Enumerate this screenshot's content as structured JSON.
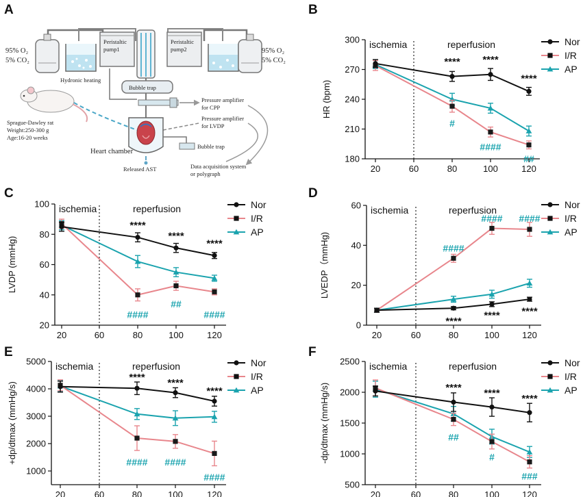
{
  "colors": {
    "nor": "#111111",
    "ir": "#e8868c",
    "ap": "#1aa3ae",
    "ir_hash": "#1aa3ae",
    "tubing": "#4aa7c7"
  },
  "legend": [
    "Nor",
    "I/R",
    "AP"
  ],
  "schematic": {
    "panel_letter": "A",
    "gas_left": [
      "95% O₂",
      "5% CO₂"
    ],
    "gas_right": [
      "95% O₂",
      "5% CO₂"
    ],
    "pump1": [
      "Peristaltic",
      "pump1"
    ],
    "pump2": [
      "Peristaltic",
      "pump2"
    ],
    "hydronic": "Hydronic heating",
    "bubble_trap_top": "Bubble trap",
    "bubble_trap_bottom": "Bubble trap",
    "pressure_cpp": [
      "Pressure amplifier",
      "for CPP"
    ],
    "pressure_lvdp": [
      "Pressure amplifier",
      "for LVDP"
    ],
    "rat_info": [
      "Sprague-Dawley rat",
      "Weight:250-300 g",
      "Age:16-20 weeks"
    ],
    "heart_chamber": "Heart chamber",
    "released": "Released AST",
    "daq": [
      "Data acquisition system",
      "or polygraph"
    ]
  },
  "chart_data": [
    {
      "panel": "B",
      "type": "line",
      "ylabel": "HR (bpm)",
      "xlabel": "",
      "categories": [
        "20",
        "60",
        "80",
        "100",
        "120"
      ],
      "x": [
        20,
        80,
        100,
        120
      ],
      "ylim": [
        180,
        300
      ],
      "yticks": [
        180,
        210,
        240,
        270,
        300
      ],
      "ischemia_label": "ischemia",
      "reperfusion_label": "reperfusion",
      "divider_x": 60,
      "series": [
        {
          "name": "Nor",
          "values": [
            276,
            263,
            265,
            248
          ],
          "errors": [
            4,
            5,
            6,
            4
          ]
        },
        {
          "name": "I/R",
          "values": [
            274,
            233,
            207,
            194
          ],
          "errors": [
            5,
            6,
            5,
            4
          ]
        },
        {
          "name": "AP",
          "values": [
            275,
            240,
            231,
            208
          ],
          "errors": [
            4,
            6,
            5,
            5
          ]
        }
      ],
      "stars": [
        {
          "x": 80,
          "y": 278,
          "text": "****"
        },
        {
          "x": 100,
          "y": 280,
          "text": "****"
        },
        {
          "x": 120,
          "y": 261,
          "text": "****"
        }
      ],
      "hashes": [
        {
          "x": 80,
          "y": 216,
          "text": "#"
        },
        {
          "x": 100,
          "y": 192,
          "text": "####"
        },
        {
          "x": 120,
          "y": 180,
          "text": "##"
        }
      ]
    },
    {
      "panel": "C",
      "type": "line",
      "ylabel": "LVDP (mmHg)",
      "xlabel": "",
      "categories": [
        "20",
        "60",
        "80",
        "100",
        "120"
      ],
      "x": [
        20,
        80,
        100,
        120
      ],
      "ylim": [
        20,
        100
      ],
      "yticks": [
        20,
        40,
        60,
        80,
        100
      ],
      "ischemia_label": "ischemia",
      "reperfusion_label": "reperfusion",
      "divider_x": 60,
      "series": [
        {
          "name": "Nor",
          "values": [
            85,
            78,
            71,
            66
          ],
          "errors": [
            3,
            3,
            3,
            2
          ]
        },
        {
          "name": "I/R",
          "values": [
            87,
            40,
            46,
            42
          ],
          "errors": [
            3,
            4,
            3,
            2
          ]
        },
        {
          "name": "AP",
          "values": [
            86,
            62,
            55,
            51
          ],
          "errors": [
            3,
            4,
            3,
            2
          ]
        }
      ],
      "stars": [
        {
          "x": 80,
          "y": 86,
          "text": "****"
        },
        {
          "x": 100,
          "y": 79,
          "text": "****"
        },
        {
          "x": 120,
          "y": 74,
          "text": "****"
        }
      ],
      "hashes": [
        {
          "x": 80,
          "y": 27,
          "text": "####"
        },
        {
          "x": 100,
          "y": 34,
          "text": "##"
        },
        {
          "x": 120,
          "y": 27,
          "text": "####"
        }
      ]
    },
    {
      "panel": "D",
      "type": "line",
      "ylabel": "LVEDP（mmHg)",
      "xlabel": "",
      "categories": [
        "20",
        "60",
        "80",
        "100",
        "120"
      ],
      "x": [
        20,
        80,
        100,
        120
      ],
      "ylim": [
        0,
        60
      ],
      "yticks": [
        0,
        20,
        40,
        60
      ],
      "ischemia_label": "ischemia",
      "reperfusion_label": "reperfusion",
      "divider_x": 60,
      "series": [
        {
          "name": "Nor",
          "values": [
            7.5,
            8.5,
            10.5,
            13
          ],
          "errors": [
            1,
            0.8,
            1.2,
            1
          ]
        },
        {
          "name": "I/R",
          "values": [
            7.5,
            33.5,
            48.5,
            48
          ],
          "errors": [
            1,
            2,
            3,
            3.5
          ]
        },
        {
          "name": "AP",
          "values": [
            7.5,
            13,
            15.5,
            21
          ],
          "errors": [
            1,
            1.5,
            2,
            2
          ]
        }
      ],
      "stars": [
        {
          "x": 80,
          "y": 2,
          "text": "****"
        },
        {
          "x": 100,
          "y": 5,
          "text": "****"
        },
        {
          "x": 120,
          "y": 7,
          "text": "****"
        }
      ],
      "hashes": [
        {
          "x": 80,
          "y": 38.5,
          "text": "####"
        },
        {
          "x": 100,
          "y": 53.5,
          "text": "####"
        },
        {
          "x": 120,
          "y": 53.5,
          "text": "####"
        }
      ]
    },
    {
      "panel": "E",
      "type": "line",
      "ylabel": "+dp/dtmax (mmHg/s)",
      "xlabel": "",
      "categories": [
        "20",
        "60",
        "80",
        "100",
        "120"
      ],
      "x": [
        20,
        80,
        100,
        120
      ],
      "ylim": [
        500,
        5000
      ],
      "yticks": [
        1000,
        2000,
        3000,
        4000,
        5000
      ],
      "ischemia_label": "ischemia",
      "reperfusion_label": "reperfusion",
      "divider_x": 60,
      "series": [
        {
          "name": "Nor",
          "values": [
            4080,
            4020,
            3860,
            3550
          ],
          "errors": [
            200,
            230,
            180,
            180
          ]
        },
        {
          "name": "I/R",
          "values": [
            4130,
            2200,
            2080,
            1640
          ],
          "errors": [
            200,
            450,
            250,
            450
          ]
        },
        {
          "name": "AP",
          "values": [
            4100,
            3080,
            2930,
            2980
          ],
          "errors": [
            200,
            200,
            270,
            200
          ]
        }
      ],
      "stars": [
        {
          "x": 80,
          "y": 4430,
          "text": "****"
        },
        {
          "x": 100,
          "y": 4230,
          "text": "****"
        },
        {
          "x": 120,
          "y": 3930,
          "text": "****"
        }
      ],
      "hashes": [
        {
          "x": 80,
          "y": 1330,
          "text": "####"
        },
        {
          "x": 100,
          "y": 1330,
          "text": "####"
        },
        {
          "x": 120,
          "y": 780,
          "text": "####"
        }
      ]
    },
    {
      "panel": "F",
      "type": "line",
      "ylabel": "-dp/dtmax (mmHg/s)",
      "xlabel": "",
      "categories": [
        "20",
        "60",
        "80",
        "100",
        "120"
      ],
      "x": [
        20,
        80,
        100,
        120
      ],
      "ylim": [
        500,
        2500
      ],
      "yticks": [
        500,
        1000,
        1500,
        2000,
        2500
      ],
      "ischemia_label": "ischemia",
      "reperfusion_label": "reperfusion",
      "divider_x": 60,
      "series": [
        {
          "name": "Nor",
          "values": [
            2020,
            1840,
            1760,
            1670
          ],
          "errors": [
            80,
            150,
            150,
            150
          ]
        },
        {
          "name": "I/R",
          "values": [
            2070,
            1560,
            1200,
            870
          ],
          "errors": [
            130,
            100,
            120,
            100
          ]
        },
        {
          "name": "AP",
          "values": [
            2050,
            1650,
            1280,
            1030
          ],
          "errors": [
            130,
            120,
            120,
            90
          ]
        }
      ],
      "stars": [
        {
          "x": 80,
          "y": 2080,
          "text": "****"
        },
        {
          "x": 100,
          "y": 1990,
          "text": "****"
        },
        {
          "x": 120,
          "y": 1900,
          "text": "****"
        }
      ],
      "hashes": [
        {
          "x": 80,
          "y": 1270,
          "text": "##"
        },
        {
          "x": 100,
          "y": 950,
          "text": "#"
        },
        {
          "x": 120,
          "y": 640,
          "text": "###"
        }
      ]
    }
  ]
}
